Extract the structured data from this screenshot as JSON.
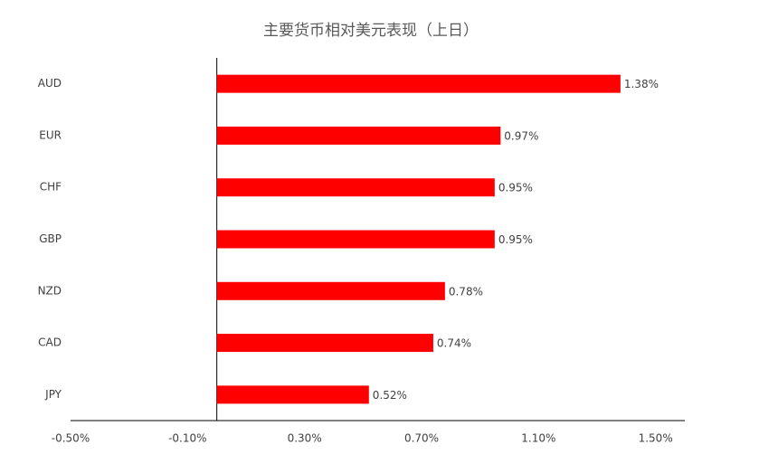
{
  "chart_data": {
    "type": "bar",
    "orientation": "horizontal",
    "title": "主要货币相对美元表现（上日）",
    "categories": [
      "AUD",
      "EUR",
      "CHF",
      "GBP",
      "NZD",
      "CAD",
      "JPY"
    ],
    "values": [
      1.38,
      0.97,
      0.95,
      0.95,
      0.78,
      0.74,
      0.52
    ],
    "value_labels": [
      "1.38%",
      "0.97%",
      "0.95%",
      "0.95%",
      "0.78%",
      "0.74%",
      "0.52%"
    ],
    "color": "#ff0000",
    "xlim": [
      -0.5,
      1.6
    ],
    "xticks": [
      {
        "value": -0.5,
        "label": "-0.50%"
      },
      {
        "value": -0.1,
        "label": "-0.10%"
      },
      {
        "value": 0.3,
        "label": "0.30%"
      },
      {
        "value": 0.7,
        "label": "0.70%"
      },
      {
        "value": 1.1,
        "label": "1.10%"
      },
      {
        "value": 1.5,
        "label": "1.50%"
      }
    ],
    "grid": false
  }
}
